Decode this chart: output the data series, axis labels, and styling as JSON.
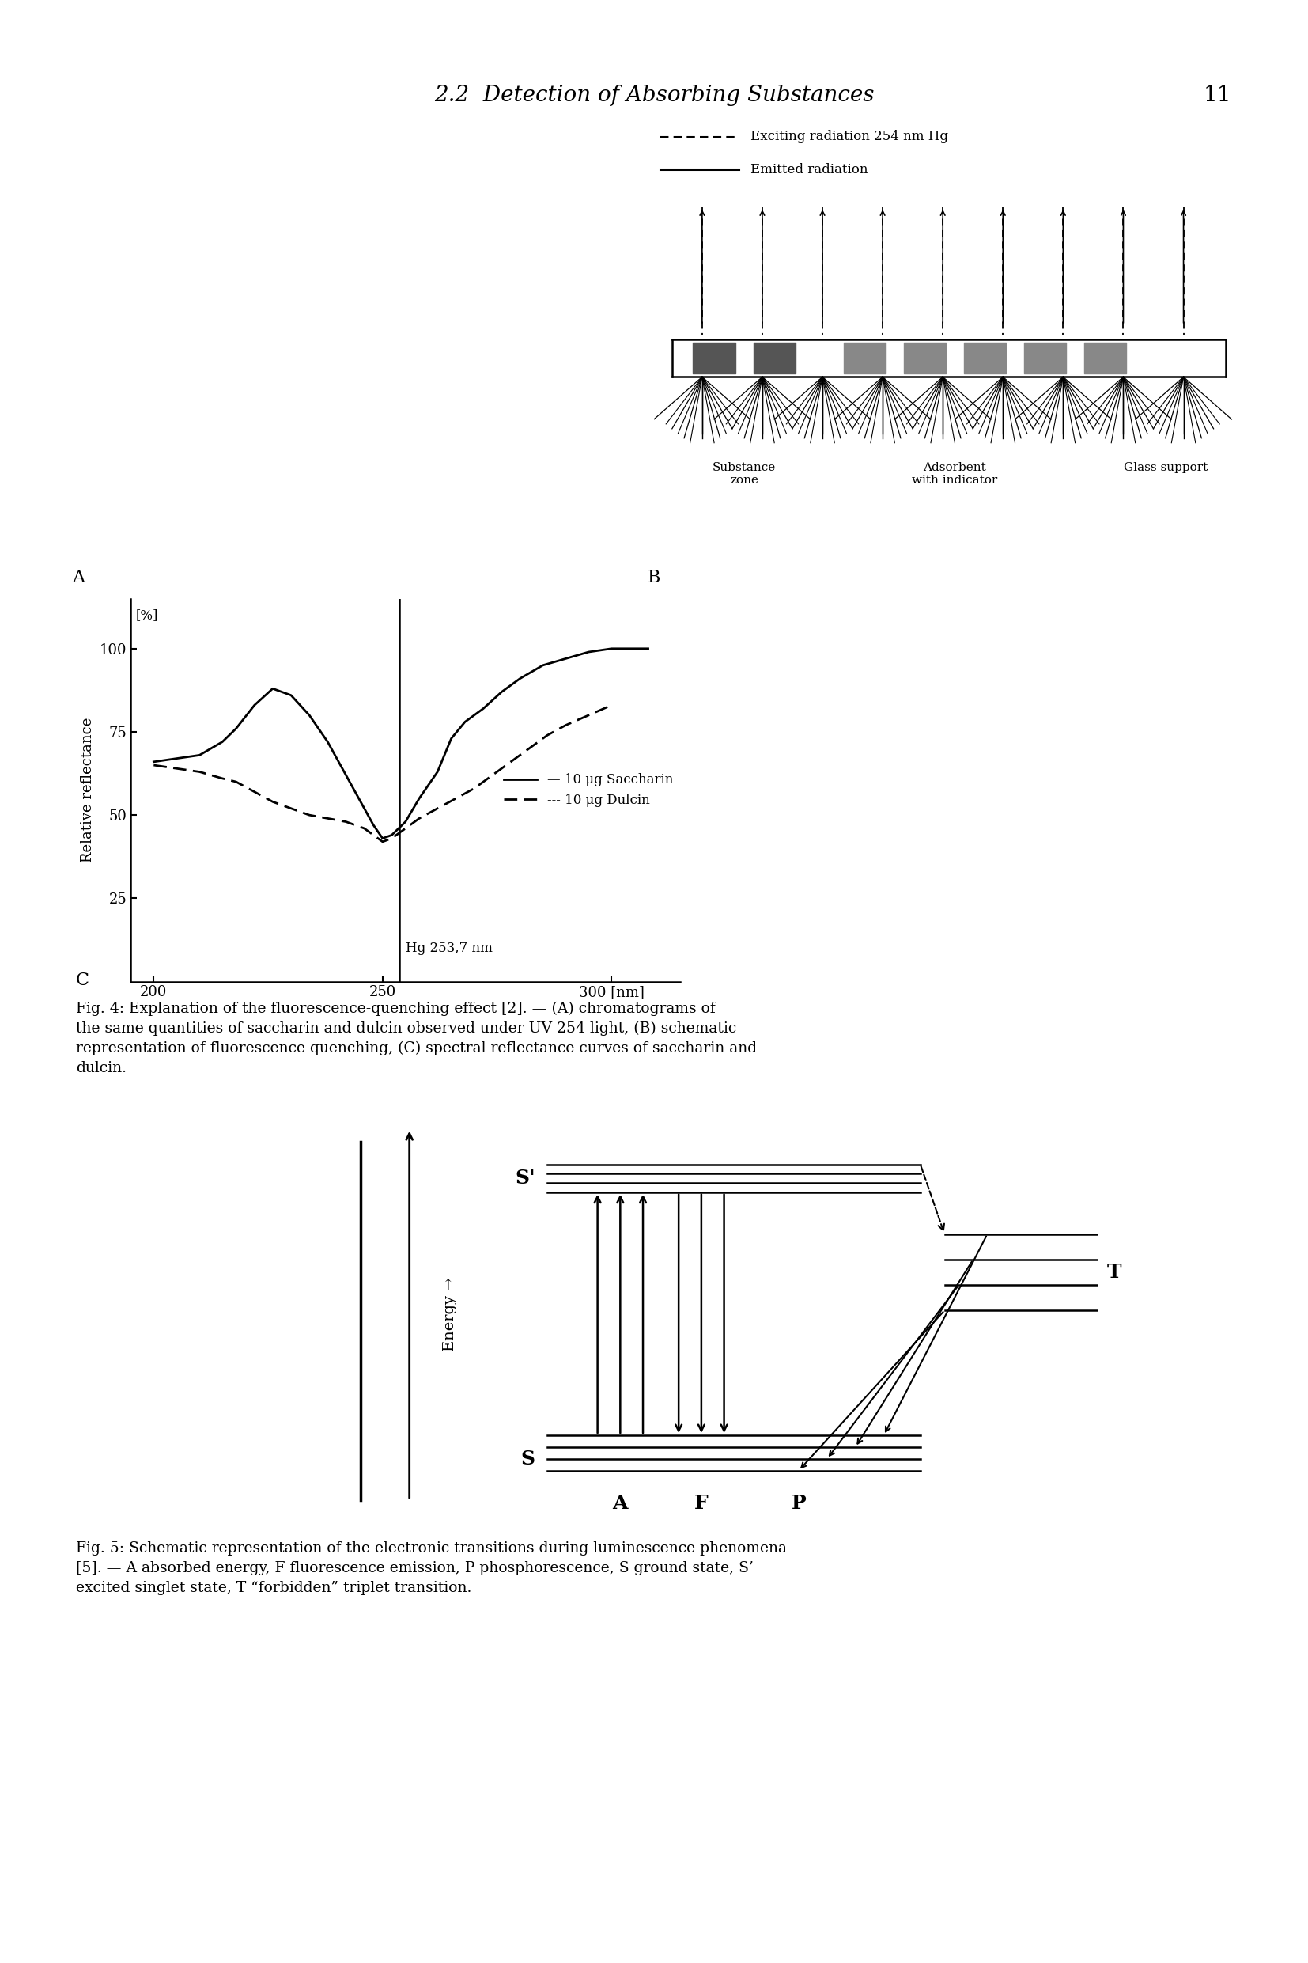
{
  "title_header": "2.2  Detection of Absorbing Substances",
  "page_number": "11",
  "fig4_caption": "Fig. 4: Explanation of the fluorescence-quenching effect [2]. — (A) chromatograms of\nthe same quantities of saccharin and dulcin observed under UV 254 light, (B) schematic\nrepresentation of fluorescence quenching, (C) spectral reflectance curves of saccharin and\ndulcin.",
  "fig5_caption": "Fig. 5: Schematic representation of the electronic transitions during luminescence phenomena\n[5]. — A absorbed energy, F fluorescence emission, P phosphorescence, S ground state, S’\nexcited singlet state, T “forbidden” triplet transition.",
  "bg_color": "#ffffff",
  "text_color": "#000000"
}
